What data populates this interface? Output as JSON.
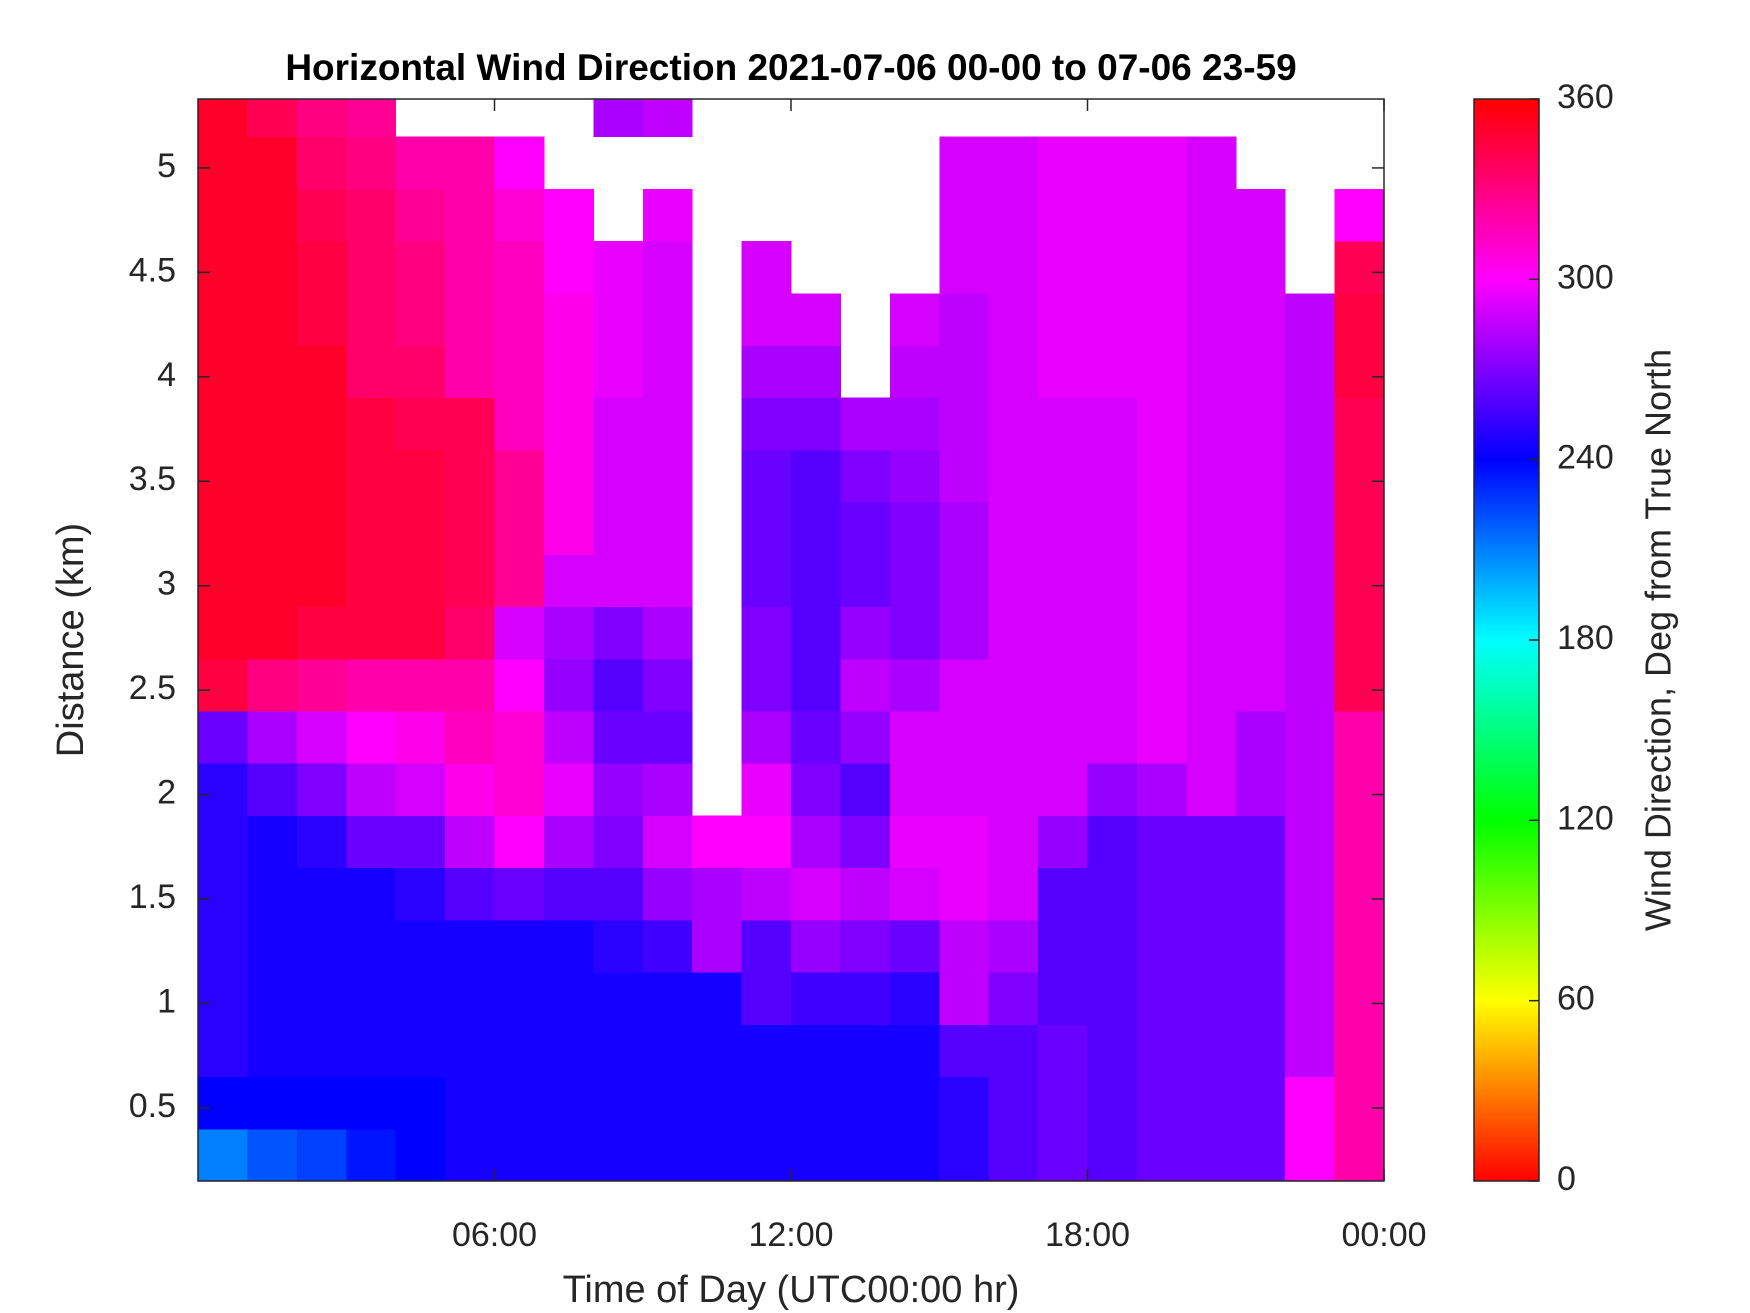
{
  "chart_data": {
    "type": "heatmap",
    "title": "Horizontal Wind Direction 2021-07-06 00-00 to 07-06 23-59",
    "x_label": "Time of Day (UTC00:00 hr)",
    "y_label": "Distance (km)",
    "colorbar_label": "Wind Direction, Deg from True North",
    "colormap": "hsv",
    "x_bins": [
      0,
      1,
      2,
      3,
      4,
      5,
      6,
      7,
      8,
      9,
      10,
      11,
      12,
      13,
      14,
      15,
      16,
      17,
      18,
      19,
      20,
      21,
      22,
      23,
      24
    ],
    "y_bins": [
      0.15,
      0.4,
      0.65,
      0.9,
      1.15,
      1.4,
      1.65,
      1.9,
      2.15,
      2.4,
      2.65,
      2.9,
      3.15,
      3.4,
      3.65,
      3.9,
      4.15,
      4.4,
      4.65,
      4.9,
      5.15,
      5.33
    ],
    "z": [
      [
        210,
        240,
        250,
        250,
        250,
        250,
        250,
        250,
        265,
        345,
        350,
        350,
        350,
        350,
        350,
        350,
        350,
        350,
        350,
        350,
        350
      ],
      [
        220,
        240,
        245,
        245,
        245,
        245,
        245,
        260,
        280,
        330,
        350,
        350,
        350,
        350,
        350,
        350,
        350,
        350,
        350,
        350,
        340
      ],
      [
        225,
        240,
        245,
        245,
        245,
        245,
        250,
        270,
        290,
        325,
        345,
        350,
        350,
        350,
        350,
        350,
        345,
        345,
        340,
        335,
        330
      ],
      [
        235,
        240,
        245,
        245,
        245,
        245,
        265,
        285,
        300,
        320,
        345,
        345,
        345,
        345,
        345,
        335,
        335,
        335,
        335,
        330,
        325
      ],
      [
        240,
        240,
        245,
        245,
        245,
        250,
        265,
        290,
        305,
        320,
        345,
        345,
        345,
        345,
        340,
        335,
        330,
        330,
        325,
        320,
        null
      ],
      [
        245,
        245,
        245,
        245,
        245,
        260,
        285,
        305,
        315,
        320,
        335,
        340,
        340,
        340,
        340,
        320,
        320,
        320,
        320,
        320,
        null
      ],
      [
        245,
        245,
        245,
        245,
        245,
        265,
        300,
        310,
        310,
        300,
        290,
        325,
        325,
        325,
        315,
        315,
        315,
        315,
        310,
        300,
        null
      ],
      [
        245,
        245,
        245,
        245,
        245,
        260,
        280,
        295,
        285,
        275,
        280,
        290,
        305,
        305,
        305,
        305,
        305,
        300,
        300,
        null,
        null
      ],
      [
        245,
        245,
        245,
        245,
        250,
        260,
        270,
        275,
        265,
        260,
        270,
        290,
        290,
        290,
        290,
        295,
        295,
        295,
        null,
        null,
        280
      ],
      [
        245,
        245,
        245,
        245,
        255,
        275,
        290,
        280,
        265,
        270,
        280,
        290,
        290,
        290,
        290,
        290,
        290,
        290,
        295,
        null,
        285
      ],
      [
        245,
        245,
        245,
        245,
        280,
        280,
        300,
        null,
        null,
        null,
        null,
        null,
        null,
        null,
        null,
        null,
        null,
        null,
        null,
        null,
        null
      ],
      [
        245,
        245,
        245,
        260,
        260,
        285,
        300,
        295,
        280,
        270,
        270,
        265,
        265,
        265,
        270,
        280,
        290,
        290,
        null,
        null,
        null
      ],
      [
        245,
        245,
        245,
        255,
        275,
        290,
        280,
        270,
        265,
        260,
        260,
        260,
        260,
        260,
        270,
        280,
        290,
        null,
        null,
        null,
        null
      ],
      [
        245,
        245,
        245,
        255,
        270,
        285,
        270,
        260,
        275,
        285,
        275,
        265,
        265,
        270,
        280,
        null,
        null,
        null,
        null,
        null,
        null
      ],
      [
        245,
        245,
        245,
        250,
        265,
        290,
        295,
        290,
        290,
        280,
        270,
        270,
        270,
        275,
        280,
        285,
        290,
        null,
        null,
        null,
        null
      ],
      [
        250,
        250,
        260,
        285,
        285,
        295,
        295,
        290,
        290,
        290,
        280,
        280,
        280,
        285,
        285,
        285,
        285,
        290,
        290,
        290,
        null
      ],
      [
        260,
        260,
        260,
        270,
        280,
        290,
        290,
        290,
        290,
        290,
        290,
        290,
        290,
        290,
        290,
        290,
        290,
        290,
        290,
        290,
        null
      ],
      [
        265,
        265,
        265,
        260,
        260,
        260,
        275,
        290,
        290,
        290,
        290,
        290,
        290,
        290,
        290,
        295,
        295,
        295,
        295,
        295,
        null
      ],
      [
        260,
        260,
        260,
        260,
        260,
        260,
        260,
        275,
        290,
        290,
        290,
        290,
        290,
        290,
        290,
        295,
        295,
        295,
        295,
        295,
        null
      ],
      [
        265,
        265,
        265,
        265,
        265,
        265,
        265,
        280,
        295,
        295,
        295,
        295,
        295,
        295,
        295,
        295,
        295,
        295,
        295,
        295,
        null
      ],
      [
        265,
        265,
        265,
        265,
        265,
        265,
        265,
        290,
        290,
        290,
        290,
        290,
        290,
        290,
        290,
        290,
        290,
        290,
        290,
        290,
        null
      ],
      [
        265,
        265,
        265,
        265,
        265,
        265,
        265,
        280,
        280,
        290,
        290,
        290,
        290,
        290,
        290,
        290,
        290,
        290,
        290,
        null,
        null
      ],
      [
        300,
        300,
        285,
        285,
        285,
        285,
        285,
        285,
        285,
        285,
        285,
        285,
        285,
        285,
        285,
        285,
        285,
        null,
        null,
        null,
        null
      ],
      [
        320,
        320,
        320,
        320,
        320,
        320,
        320,
        320,
        320,
        340,
        340,
        340,
        340,
        340,
        340,
        345,
        345,
        340,
        300,
        null,
        null
      ]
    ],
    "xlim": [
      0,
      24
    ],
    "xticks": [
      {
        "value": 6,
        "label": "06:00"
      },
      {
        "value": 12,
        "label": "12:00"
      },
      {
        "value": 18,
        "label": "18:00"
      },
      {
        "value": 24,
        "label": "00:00"
      }
    ],
    "ylim": [
      0.15,
      5.33
    ],
    "yticks": [
      0.5,
      1,
      1.5,
      2,
      2.5,
      3,
      3.5,
      4,
      4.5,
      5
    ],
    "zlim": [
      0,
      360
    ],
    "zticks": [
      0,
      60,
      120,
      180,
      240,
      300,
      360
    ]
  }
}
